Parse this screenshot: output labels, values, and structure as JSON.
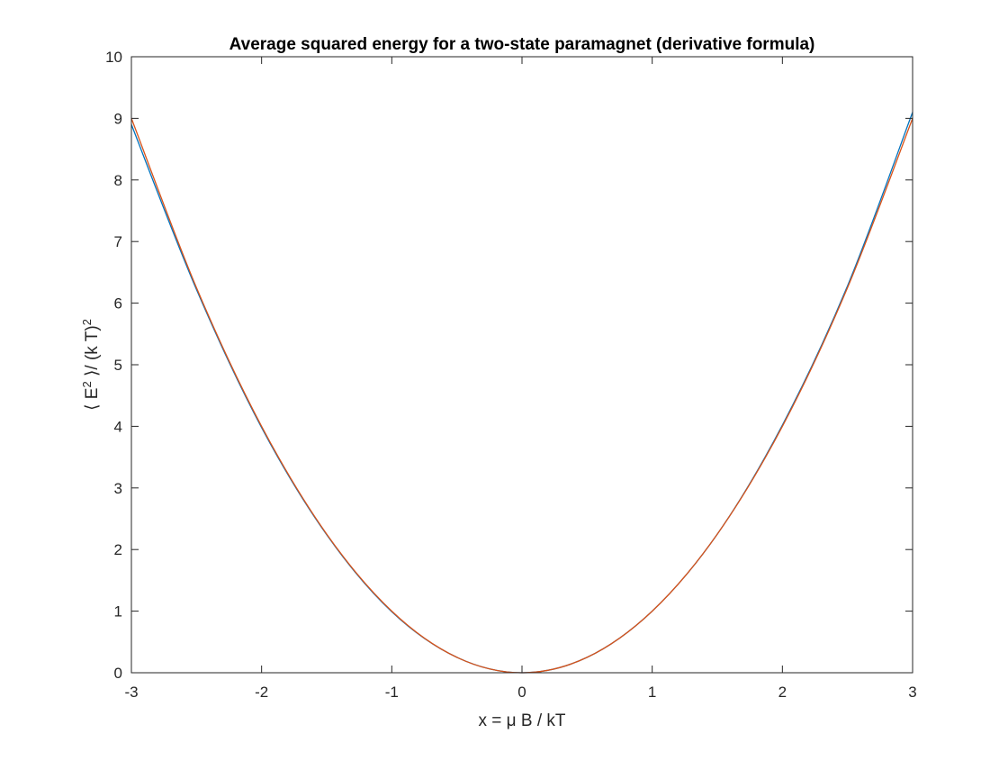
{
  "chart_data": {
    "type": "line",
    "title": "Average squared energy for a two-state paramagnet (derivative formula)",
    "xlabel": "x = μ B / kT",
    "ylabel": {
      "open": "⟨ E",
      "sup1": "2",
      "mid": " ⟩/ (k T)",
      "sup2": "2"
    },
    "xlim": [
      -3,
      3
    ],
    "ylim": [
      0,
      10
    ],
    "x_ticks": [
      -3,
      -2,
      -1,
      0,
      1,
      2,
      3
    ],
    "y_ticks": [
      0,
      1,
      2,
      3,
      4,
      5,
      6,
      7,
      8,
      9,
      10
    ],
    "grid": false,
    "legend": "none",
    "series": [
      {
        "color": "#0072BD",
        "x": [
          -3,
          -2.5,
          -2,
          -1.5,
          -1,
          -0.5,
          0,
          0.5,
          1,
          1.5,
          2,
          2.5,
          3
        ],
        "y": [
          8.9,
          6.22,
          3.98,
          2.24,
          0.99,
          0.25,
          0,
          0.25,
          1.0,
          2.25,
          4.02,
          6.28,
          9.1
        ]
      },
      {
        "color": "#D95319",
        "x": [
          -3,
          -2.5,
          -2,
          -1.5,
          -1,
          -0.5,
          0,
          0.5,
          1,
          1.5,
          2,
          2.5,
          3
        ],
        "y": [
          9.0,
          6.25,
          4.0,
          2.25,
          1.0,
          0.25,
          0,
          0.25,
          1.0,
          2.25,
          4.0,
          6.25,
          9.0
        ]
      }
    ]
  }
}
